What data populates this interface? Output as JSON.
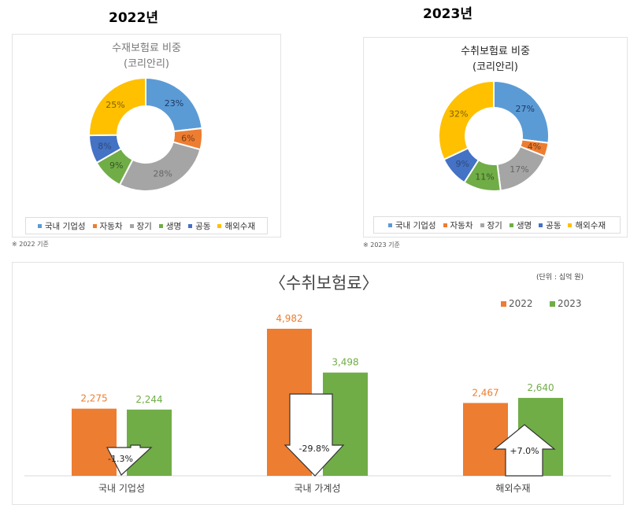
{
  "chart_data": [
    {
      "type": "pie",
      "donut": true,
      "heading": "2022년",
      "title": "수재보험료 비중",
      "subtitle": "(코리안리)",
      "note": "※ 2022 기준",
      "categories": [
        "국내 기업성",
        "자동차",
        "장기",
        "생명",
        "공동",
        "해외수재"
      ],
      "values": [
        23,
        6,
        28,
        9,
        8,
        25
      ],
      "labels": [
        "23%",
        "6%",
        "28%",
        "9%",
        "8%",
        "25%"
      ],
      "colors": [
        "#5b9bd5",
        "#ed7d31",
        "#a5a5a5",
        "#70ad47",
        "#4472c4",
        "#ffc000"
      ],
      "legend": "bottom"
    },
    {
      "type": "pie",
      "donut": true,
      "heading": "2023년",
      "title": "수취보험료 비중",
      "subtitle": "(코리안리)",
      "note": "※ 2023 기준",
      "categories": [
        "국내 기업성",
        "자동차",
        "장기",
        "생명",
        "공동",
        "해외수재"
      ],
      "values": [
        27,
        4,
        17,
        11,
        9,
        32
      ],
      "labels": [
        "27%",
        "4%",
        "17%",
        "11%",
        "9%",
        "32%"
      ],
      "colors": [
        "#5b9bd5",
        "#ed7d31",
        "#a5a5a5",
        "#70ad47",
        "#4472c4",
        "#ffc000"
      ],
      "legend": "bottom"
    },
    {
      "type": "bar",
      "title": "〈수취보험료〉",
      "unit": "(단위 : 십억 원)",
      "categories": [
        "국내 기업성",
        "국내 가계성",
        "해외수재"
      ],
      "series": [
        {
          "name": "2022",
          "values": [
            2275,
            4982,
            2467
          ],
          "labels": [
            "2,275",
            "4,982",
            "2,467"
          ],
          "color": "#ed7d31"
        },
        {
          "name": "2023",
          "values": [
            2244,
            3498,
            2640
          ],
          "labels": [
            "2,244",
            "3,498",
            "2,640"
          ],
          "color": "#70ad47"
        }
      ],
      "changes": [
        {
          "label": "-1.3%",
          "direction": "down"
        },
        {
          "label": "-29.8%",
          "direction": "down"
        },
        {
          "label": "+7.0%",
          "direction": "up"
        }
      ],
      "legend": "top-right",
      "ylim": [
        0,
        4982
      ]
    }
  ]
}
